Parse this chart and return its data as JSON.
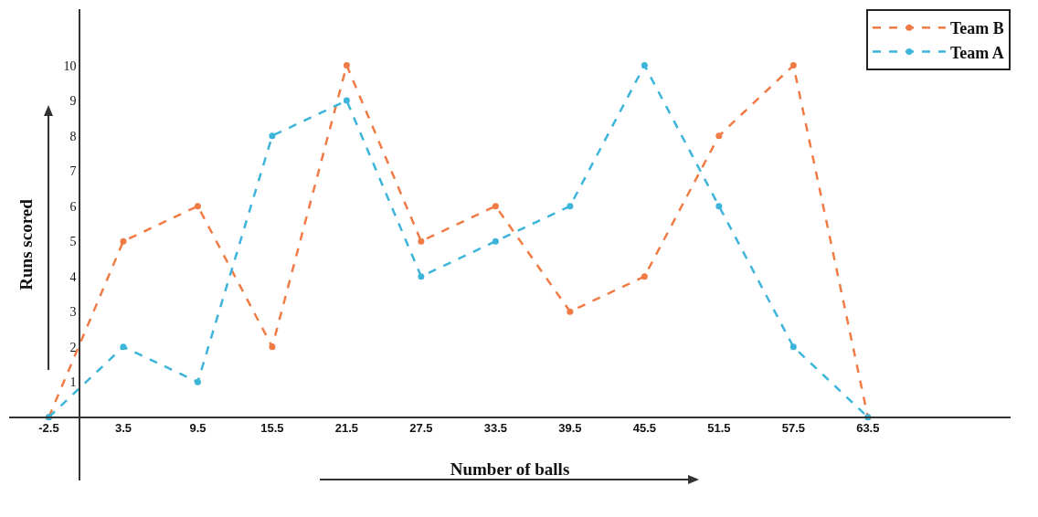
{
  "chart_data": {
    "type": "line",
    "xlabel": "Number of balls",
    "ylabel": "Runs scored",
    "x": [
      -2.5,
      3.5,
      9.5,
      15.5,
      21.5,
      27.5,
      33.5,
      39.5,
      45.5,
      51.5,
      57.5,
      63.5
    ],
    "series": [
      {
        "name": "Team B",
        "color": "#f07b45",
        "values": [
          0,
          5,
          6,
          2,
          10,
          5,
          6,
          3,
          4,
          8,
          10,
          0
        ]
      },
      {
        "name": "Team A",
        "color": "#3db4da",
        "values": [
          0,
          2,
          1,
          8,
          9,
          4,
          5,
          6,
          10,
          6,
          2,
          0
        ]
      }
    ],
    "xlim": [
      -5.7,
      75
    ],
    "ylim": [
      -1.8,
      11.6
    ],
    "xticks": [
      -2.5,
      3.5,
      9.5,
      15.5,
      21.5,
      27.5,
      33.5,
      39.5,
      45.5,
      51.5,
      57.5,
      63.5
    ],
    "yticks": [
      1,
      2,
      3,
      4,
      5,
      6,
      7,
      8,
      9,
      10
    ],
    "grid": false,
    "legend": "top right",
    "marker": "circle",
    "line_style": "dashed"
  }
}
